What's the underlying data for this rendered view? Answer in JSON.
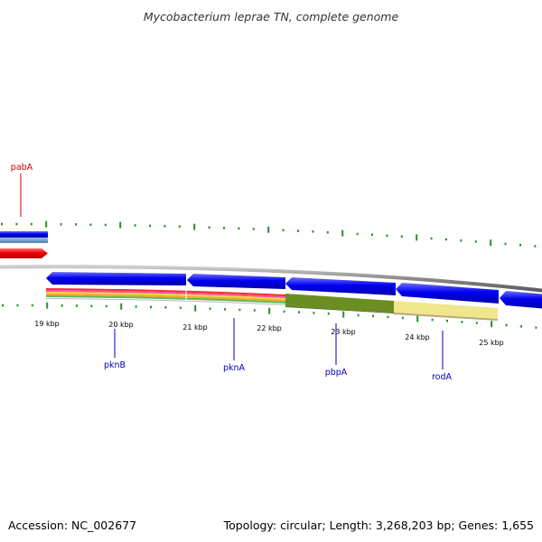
{
  "header": {
    "title": "Mycobacterium leprae TN, complete genome"
  },
  "footer": {
    "accession": "Accession: NC_002677",
    "summary": "Topology: circular; Length: 3,268,203 bp; Genes: 1,655"
  },
  "ruler": {
    "labels": [
      "19 kbp",
      "20 kbp",
      "21 kbp",
      "22 kbp",
      "23 kbp",
      "24 kbp",
      "25 kbp"
    ]
  },
  "genes": [
    {
      "name": "pabA",
      "color": "#cc0000"
    },
    {
      "name": "pknB",
      "color": "#0000bb"
    },
    {
      "name": "pknA",
      "color": "#0000bb"
    },
    {
      "name": "pbpA",
      "color": "#0000bb"
    },
    {
      "name": "rodA",
      "color": "#0000bb"
    }
  ],
  "colors": {
    "forward_gene": "#0000ff",
    "reverse_gene": "#ee0000",
    "tick": "#2e8b2e",
    "backbone": "#888888",
    "highlight_dark": "#6b8e23",
    "highlight_light": "#f0e68c"
  }
}
